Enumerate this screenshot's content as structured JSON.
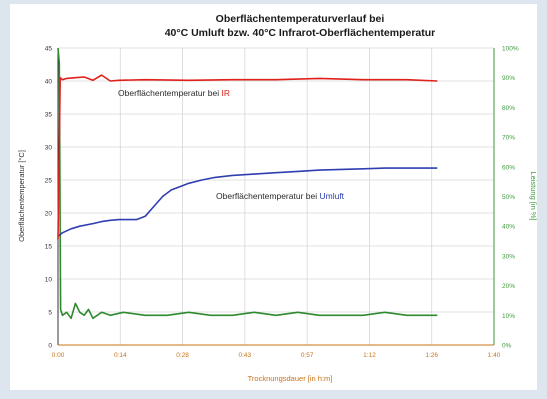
{
  "chart_data": {
    "type": "line",
    "title_line1": "Oberflächentemperaturverlauf bei",
    "title_line2": "40°C Umluft bzw. 40°C Infrarot-Oberflächentemperatur",
    "xlabel": "Trocknungsdauer [in h:m]",
    "ylabel": "Oberflächentemperatur [°C]",
    "y2label": "Leistung [in %]",
    "x_ticks": [
      "0:00",
      "0:14",
      "0:28",
      "0:43",
      "0:57",
      "1:12",
      "1:26",
      "1:40"
    ],
    "xlim": [
      0,
      100
    ],
    "ylim": [
      0,
      45
    ],
    "y_ticks": [
      "0",
      "5",
      "10",
      "15",
      "20",
      "25",
      "30",
      "35",
      "40",
      "45"
    ],
    "y2lim": [
      0,
      100
    ],
    "y2_ticks": [
      "0%",
      "10%",
      "20%",
      "30%",
      "40%",
      "50%",
      "60%",
      "70%",
      "80%",
      "90%",
      "100%"
    ],
    "grid": true,
    "colors": {
      "ir": "#e0201b",
      "umluft": "#2f3fb0",
      "leistung": "#2e8a2e",
      "left_axis": "#333333",
      "bottom_axis": "#c8731a",
      "right_axis": "#3f9a3f",
      "title": "#1a1a1a"
    },
    "series": [
      {
        "key": "ir",
        "axis": "left",
        "x": [
          0,
          0.5,
          1,
          2,
          4,
          6,
          8,
          10,
          12,
          14,
          20,
          30,
          40,
          50,
          60,
          70,
          80,
          87
        ],
        "y": [
          16,
          40.5,
          40.2,
          40.4,
          40.5,
          40.6,
          40.1,
          40.9,
          40.0,
          40.1,
          40.2,
          40.1,
          40.2,
          40.2,
          40.4,
          40.2,
          40.2,
          40.0
        ]
      },
      {
        "key": "umluft",
        "axis": "left",
        "x": [
          0,
          1,
          3,
          5,
          8,
          10,
          12,
          14,
          16,
          18,
          20,
          22,
          24,
          26,
          28,
          30,
          33,
          36,
          40,
          45,
          50,
          55,
          60,
          65,
          70,
          75,
          80,
          87
        ],
        "y": [
          16.5,
          17.0,
          17.6,
          18.0,
          18.4,
          18.7,
          18.9,
          19.0,
          19.0,
          19.0,
          19.5,
          21.0,
          22.5,
          23.5,
          24.0,
          24.5,
          25.0,
          25.4,
          25.7,
          25.9,
          26.1,
          26.3,
          26.5,
          26.6,
          26.7,
          26.8,
          26.8,
          26.8
        ]
      },
      {
        "key": "leistung",
        "axis": "right",
        "x": [
          0,
          0.3,
          0.6,
          1,
          2,
          3,
          4,
          5,
          6,
          7,
          8,
          10,
          12,
          15,
          20,
          25,
          30,
          35,
          40,
          45,
          50,
          55,
          60,
          65,
          70,
          75,
          80,
          85,
          87
        ],
        "y": [
          100,
          95,
          12,
          10,
          11,
          9,
          14,
          11,
          10,
          12,
          9,
          11,
          10,
          11,
          10,
          10,
          11,
          10,
          10,
          11,
          10,
          11,
          10,
          10,
          10,
          11,
          10,
          10,
          10
        ]
      }
    ],
    "annotations": [
      {
        "target": "ir",
        "text": "Oberflächentemperatur bei ",
        "highlight": "IR"
      },
      {
        "target": "umluft",
        "text": "Oberflächentemperatur bei ",
        "highlight": "Umluft"
      }
    ]
  }
}
